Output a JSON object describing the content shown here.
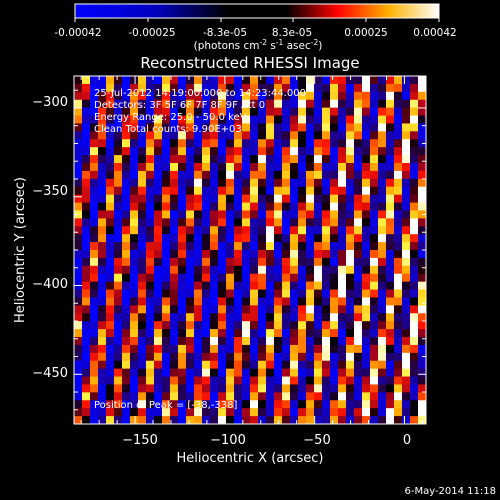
{
  "colorbar": {
    "ticks": [
      "-0.00042",
      "-0.00025",
      "-8.3e-05",
      "8.3e-05",
      "0.00025",
      "0.00042"
    ],
    "units_main": "(photons cm",
    "units_exp1": "-2",
    "units_mid": " s",
    "units_exp2": "-1",
    "units_end": " asec",
    "units_exp3": "-2",
    "units_close": ")",
    "range": [
      -0.00042,
      0.00042
    ],
    "colors": [
      "#0000ff",
      "#000000",
      "#ff0000",
      "#ffff00",
      "#ffffff"
    ]
  },
  "annotations": {
    "line1": "25-Jul-2012 14:19:00.000 to 14:23:44.000",
    "line2": "Detectors: 3F 5F 6F 7F 8F 9F  Att 0",
    "line3": "Energy Range: 25.0 - 50.0 keV",
    "line4": "Clean     Total counts: 9.90E+03",
    "peak": "Position of Peak = [-38,-338]"
  },
  "footer": {
    "date": "6-May-2014 11:18"
  },
  "chart_data": {
    "type": "heatmap",
    "title": "Reconstructed RHESSI Image",
    "xlabel": "Heliocentric X (arcsec)",
    "ylabel": "Heliocentric Y (arcsec)",
    "xlim": [
      -184,
      12
    ],
    "ylim": [
      -478,
      -282
    ],
    "xticks": [
      -150,
      -100,
      -50,
      0
    ],
    "yticks": [
      -300,
      -350,
      -400,
      -450
    ],
    "tick_labels_x": [
      "−150",
      "−100",
      "−50",
      "0"
    ],
    "tick_labels_y": [
      "−300",
      "−350",
      "−400",
      "−450"
    ],
    "peak": [
      -38,
      -338
    ],
    "grid": false,
    "value_range": [
      -0.00042,
      0.00042
    ],
    "pattern": "diagonal stripes of alternating positive and negative flux, brighter toward the right"
  }
}
